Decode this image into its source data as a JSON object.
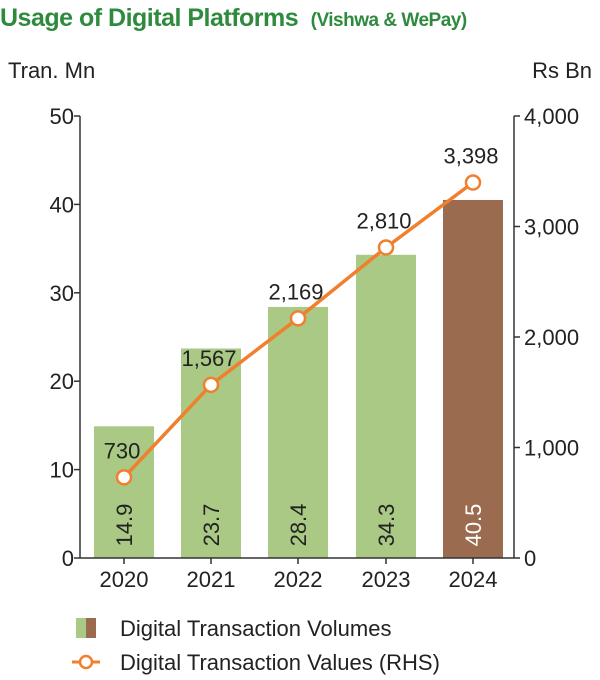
{
  "title": "Usage of Digital Platforms",
  "subtitle": "(Vishwa & WePay)",
  "colors": {
    "title": "#2e8b3e",
    "bar": "#a9c985",
    "bar_highlight": "#9a6b4f",
    "line": "#f07f2e",
    "axis": "#333333",
    "text": "#222222"
  },
  "chart_data": {
    "type": "bar",
    "categories": [
      "2020",
      "2021",
      "2022",
      "2023",
      "2024"
    ],
    "series": [
      {
        "name": "Digital Transaction Volumes",
        "type": "bar",
        "axis": "left",
        "values": [
          14.9,
          23.7,
          28.4,
          34.3,
          40.5
        ],
        "labels": [
          "14.9",
          "23.7",
          "28.4",
          "34.3",
          "40.5"
        ]
      },
      {
        "name": "Digital Transaction Values (RHS)",
        "type": "line",
        "axis": "right",
        "values": [
          730,
          1567,
          2169,
          2810,
          3398
        ],
        "labels": [
          "730",
          "1,567",
          "2,169",
          "2,810",
          "3,398"
        ]
      }
    ],
    "y_left": {
      "label": "Tran. Mn",
      "min": 0,
      "max": 50,
      "ticks": [
        "0",
        "10",
        "20",
        "30",
        "40",
        "50"
      ]
    },
    "y_right": {
      "label": "Rs Bn",
      "min": 0,
      "max": 4000,
      "ticks": [
        "0",
        "1,000",
        "2,000",
        "3,000",
        "4,000"
      ]
    },
    "highlight_category": "2024",
    "grid": false,
    "legend_position": "bottom"
  }
}
